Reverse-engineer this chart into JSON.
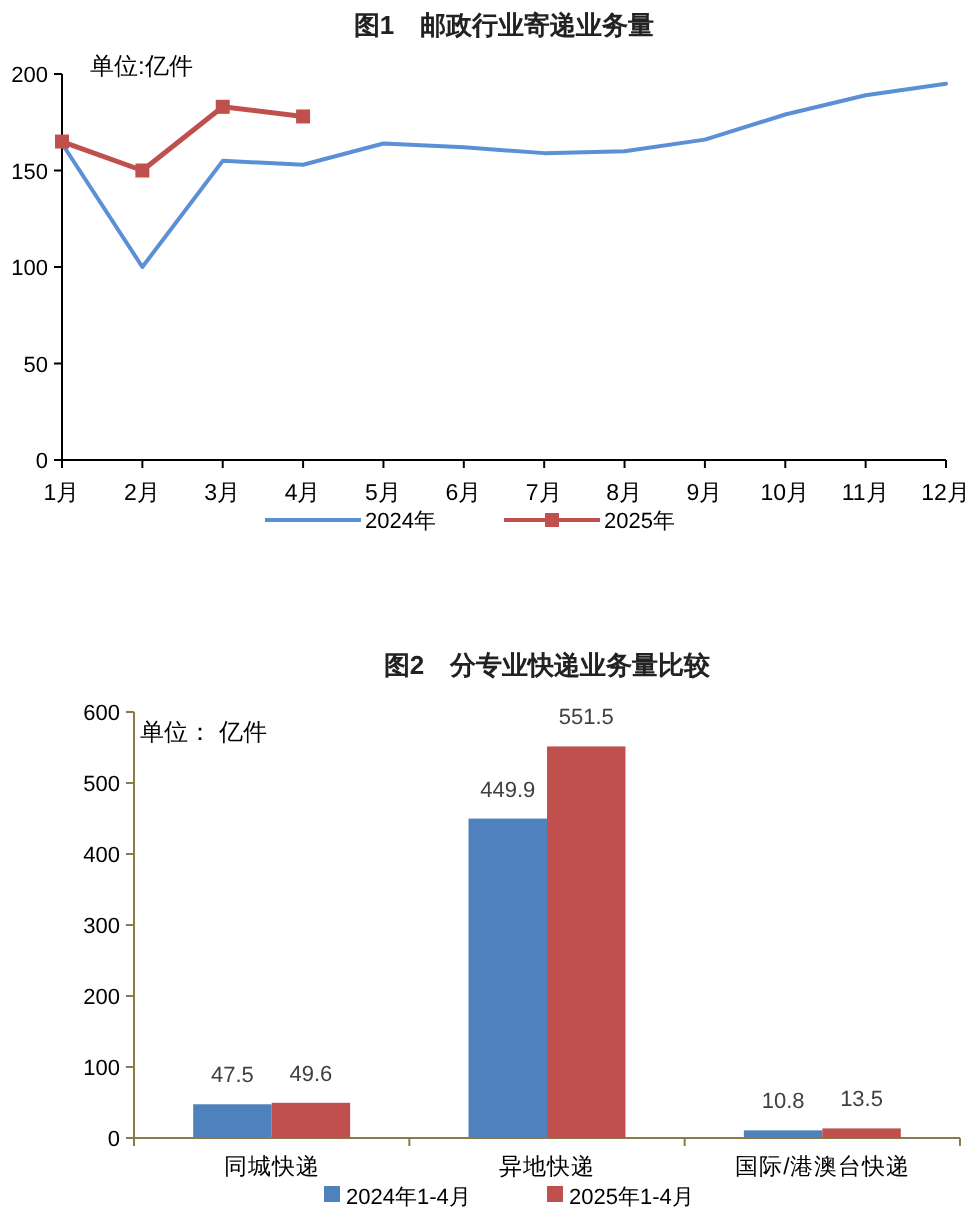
{
  "chart_data": [
    {
      "type": "line",
      "title": "图1　邮政行业寄递业务量",
      "annotations": [
        "单位:亿件"
      ],
      "categories": [
        "1月",
        "2月",
        "3月",
        "4月",
        "5月",
        "6月",
        "7月",
        "8月",
        "9月",
        "10月",
        "11月",
        "12月"
      ],
      "series": [
        {
          "name": "2024年",
          "color": "#5b8fd6",
          "marker": "none",
          "values": [
            164,
            100,
            155,
            153,
            164,
            162,
            159,
            160,
            166,
            179,
            189,
            195
          ]
        },
        {
          "name": "2025年",
          "color": "#c0504d",
          "marker": "square",
          "values": [
            165,
            150,
            183,
            178,
            null,
            null,
            null,
            null,
            null,
            null,
            null,
            null
          ]
        }
      ],
      "ylim": [
        0,
        200
      ],
      "yticks": [
        0,
        50,
        100,
        150,
        200
      ],
      "grid": false,
      "legend": "bottom"
    },
    {
      "type": "bar",
      "title": "图2　分专业快递业务量比较",
      "annotations": [
        "单位： 亿件"
      ],
      "categories": [
        "同城快递",
        "异地快递",
        "国际/港澳台快递"
      ],
      "series": [
        {
          "name": "2024年1-4月",
          "color": "#4f81bd",
          "values": [
            47.5,
            449.9,
            10.8
          ]
        },
        {
          "name": "2025年1-4月",
          "color": "#c0504d",
          "values": [
            49.6,
            551.5,
            13.5
          ]
        }
      ],
      "ylim": [
        0,
        600
      ],
      "yticks": [
        0,
        100,
        200,
        300,
        400,
        500,
        600
      ],
      "grid": false,
      "data_labels": true,
      "legend": "bottom"
    }
  ]
}
